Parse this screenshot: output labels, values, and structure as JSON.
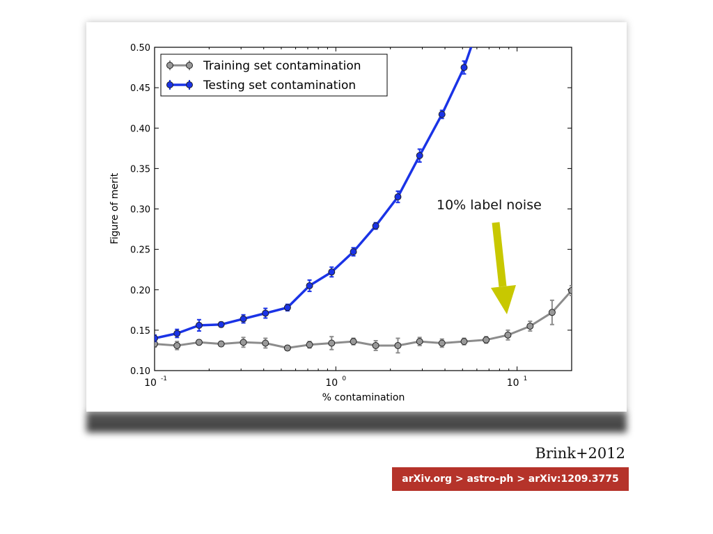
{
  "citation": "Brink+2012",
  "arxiv_banner": "arXiv.org > astro-ph > arXiv:1209.3775",
  "colors": {
    "training": "#8c8c8c",
    "training_marker": "#999999",
    "testing": "#1a33e6",
    "testing_marker": "#1a33e6",
    "arrow": "#c8c800",
    "banner": "#b5332a"
  },
  "annotation": {
    "text": "10% label noise"
  },
  "chart_data": {
    "type": "line",
    "xlabel": "% contamination",
    "ylabel": "Figure of merit",
    "xscale": "log",
    "xlim": [
      0.1,
      20
    ],
    "ylim": [
      0.1,
      0.5
    ],
    "yticks": [
      "0.10",
      "0.15",
      "0.20",
      "0.25",
      "0.30",
      "0.35",
      "0.40",
      "0.45",
      "0.50"
    ],
    "xticks": [
      {
        "base": "10",
        "exp": "-1",
        "value": 0.1
      },
      {
        "base": "10",
        "exp": "0",
        "value": 1
      },
      {
        "base": "10",
        "exp": "1",
        "value": 10
      }
    ],
    "legend_position": "top-left",
    "grid": false,
    "series": [
      {
        "name": "Training set contamination",
        "x": [
          0.1,
          0.133,
          0.176,
          0.233,
          0.309,
          0.409,
          0.541,
          0.716,
          0.948,
          1.25,
          1.66,
          2.2,
          2.9,
          3.85,
          5.1,
          6.75,
          8.9,
          11.8,
          15.6,
          20.0
        ],
        "y": [
          0.133,
          0.131,
          0.135,
          0.133,
          0.135,
          0.134,
          0.128,
          0.132,
          0.134,
          0.136,
          0.131,
          0.131,
          0.136,
          0.134,
          0.136,
          0.138,
          0.144,
          0.155,
          0.172,
          0.199
        ],
        "err": [
          0.004,
          0.005,
          0.003,
          0.003,
          0.006,
          0.006,
          0.003,
          0.004,
          0.008,
          0.004,
          0.006,
          0.009,
          0.005,
          0.005,
          0.004,
          0.004,
          0.006,
          0.006,
          0.015,
          0.006
        ]
      },
      {
        "name": "Testing set contamination",
        "x": [
          0.1,
          0.133,
          0.176,
          0.233,
          0.309,
          0.409,
          0.541,
          0.716,
          0.948,
          1.25,
          1.66,
          2.2,
          2.9,
          3.85,
          5.1,
          6.2
        ],
        "y": [
          0.14,
          0.146,
          0.156,
          0.157,
          0.164,
          0.171,
          0.178,
          0.205,
          0.222,
          0.247,
          0.279,
          0.315,
          0.366,
          0.417,
          0.475,
          0.53
        ],
        "err": [
          0.004,
          0.005,
          0.007,
          0.003,
          0.005,
          0.006,
          0.004,
          0.007,
          0.006,
          0.005,
          0.004,
          0.007,
          0.008,
          0.005,
          0.008,
          0.0
        ]
      }
    ]
  }
}
